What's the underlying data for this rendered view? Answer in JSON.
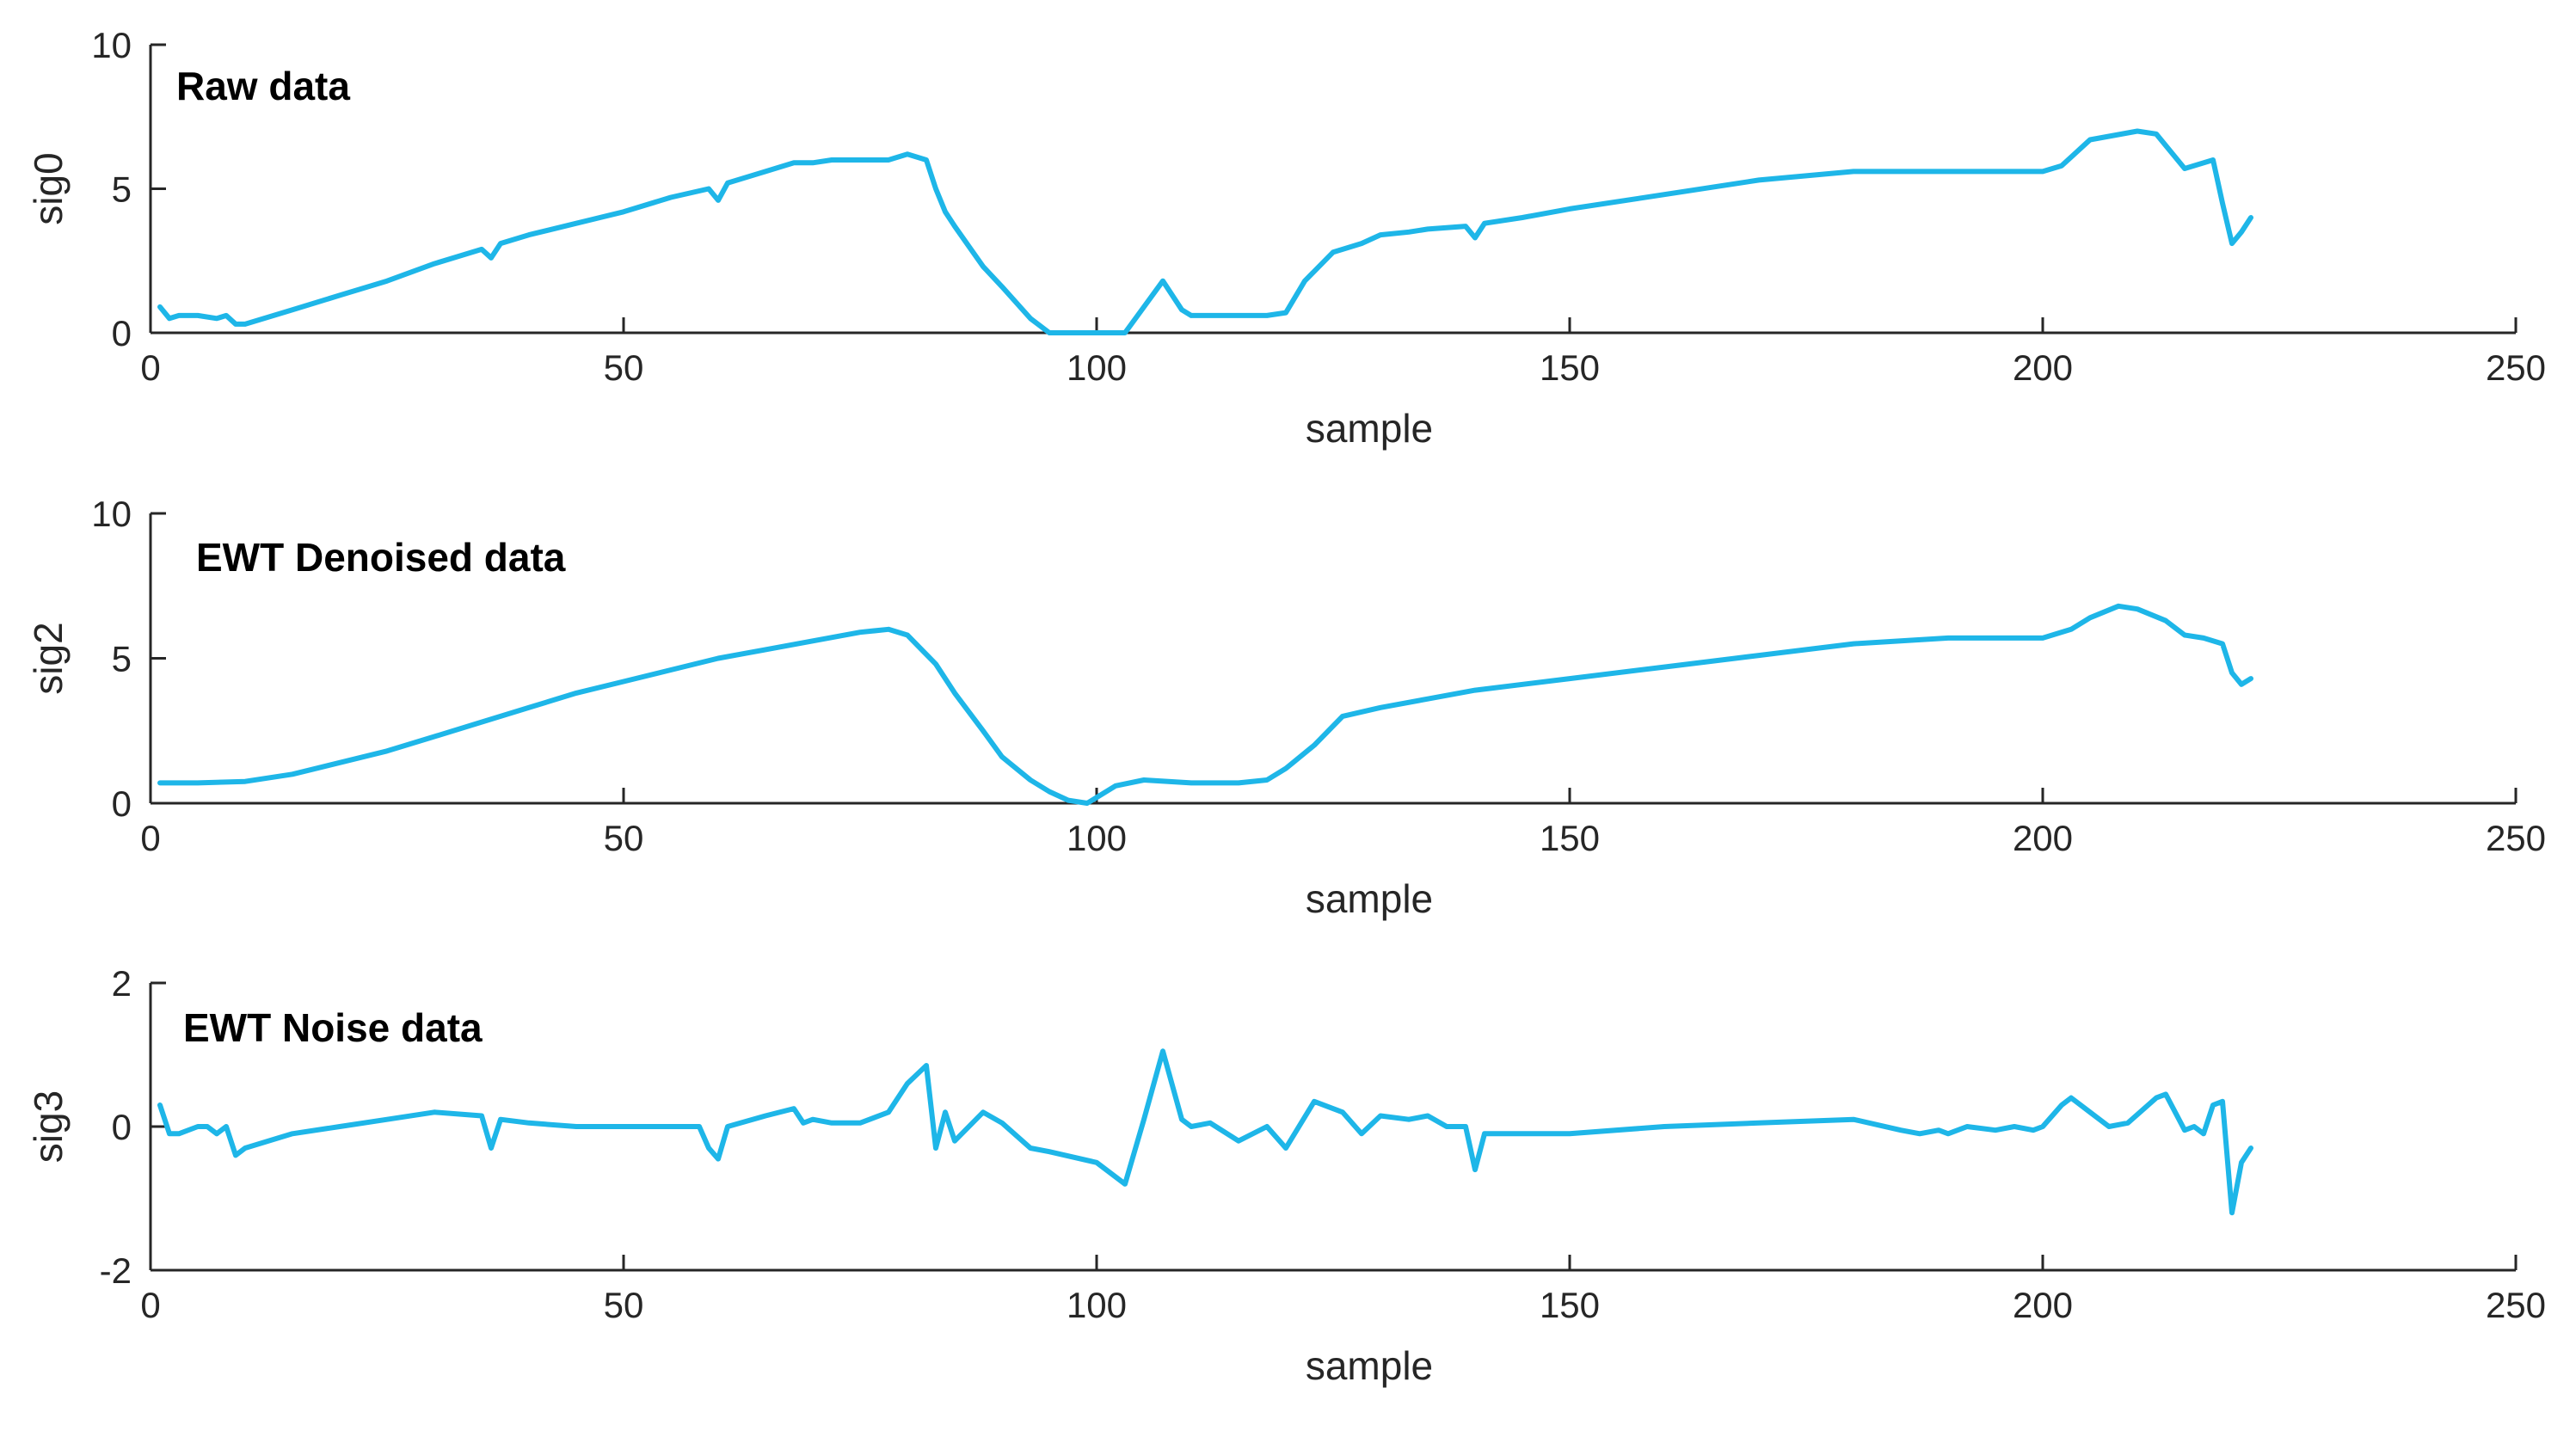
{
  "chart_data": [
    {
      "type": "line",
      "title": "Raw data",
      "xlabel": "sample",
      "ylabel": "sig0",
      "xlim": [
        0,
        250
      ],
      "ylim": [
        0,
        10
      ],
      "xticks": [
        0,
        50,
        100,
        150,
        200,
        250
      ],
      "yticks": [
        0,
        5,
        10
      ],
      "series": [
        {
          "name": "sig0",
          "color": "#1EB6E8",
          "x": [
            1,
            2,
            3,
            5,
            7,
            8,
            9,
            10,
            15,
            20,
            25,
            30,
            35,
            36,
            37,
            40,
            45,
            50,
            55,
            59,
            60,
            61,
            65,
            68,
            70,
            72,
            75,
            78,
            80,
            82,
            83,
            84,
            85,
            88,
            90,
            93,
            95,
            100,
            103,
            105,
            107,
            109,
            110,
            115,
            118,
            120,
            122,
            125,
            128,
            130,
            133,
            135,
            139,
            140,
            141,
            145,
            150,
            160,
            170,
            180,
            185,
            190,
            195,
            200,
            202,
            205,
            210,
            212,
            215,
            218,
            219,
            220,
            221,
            222
          ],
          "y": [
            0.9,
            0.5,
            0.6,
            0.6,
            0.5,
            0.6,
            0.3,
            0.3,
            0.8,
            1.3,
            1.8,
            2.4,
            2.9,
            2.6,
            3.1,
            3.4,
            3.8,
            4.2,
            4.7,
            5.0,
            4.6,
            5.2,
            5.6,
            5.9,
            5.9,
            6.0,
            6.0,
            6.0,
            6.2,
            6.0,
            5.0,
            4.2,
            3.7,
            2.3,
            1.6,
            0.5,
            0.0,
            0.0,
            0.0,
            0.9,
            1.8,
            0.8,
            0.6,
            0.6,
            0.6,
            0.7,
            1.8,
            2.8,
            3.1,
            3.4,
            3.5,
            3.6,
            3.7,
            3.3,
            3.8,
            4.0,
            4.3,
            4.8,
            5.3,
            5.6,
            5.6,
            5.6,
            5.6,
            5.6,
            5.8,
            6.7,
            7.0,
            6.9,
            5.7,
            6.0,
            4.5,
            3.1,
            3.5,
            4.0
          ]
        }
      ]
    },
    {
      "type": "line",
      "title": "EWT Denoised data",
      "xlabel": "sample",
      "ylabel": "sig2",
      "xlim": [
        0,
        250
      ],
      "ylim": [
        0,
        10
      ],
      "xticks": [
        0,
        50,
        100,
        150,
        200,
        250
      ],
      "yticks": [
        0,
        5,
        10
      ],
      "series": [
        {
          "name": "sig2",
          "color": "#1EB6E8",
          "x": [
            1,
            5,
            10,
            15,
            20,
            25,
            30,
            35,
            40,
            45,
            50,
            55,
            60,
            65,
            70,
            75,
            78,
            80,
            83,
            85,
            88,
            90,
            93,
            95,
            97,
            99,
            100,
            102,
            105,
            110,
            115,
            118,
            120,
            123,
            126,
            130,
            135,
            140,
            150,
            160,
            170,
            180,
            190,
            195,
            200,
            203,
            205,
            208,
            210,
            213,
            215,
            217,
            219,
            220,
            221,
            222
          ],
          "y": [
            0.7,
            0.7,
            0.75,
            1.0,
            1.4,
            1.8,
            2.3,
            2.8,
            3.3,
            3.8,
            4.2,
            4.6,
            5.0,
            5.3,
            5.6,
            5.9,
            6.0,
            5.8,
            4.8,
            3.8,
            2.5,
            1.6,
            0.8,
            0.4,
            0.1,
            0.0,
            0.2,
            0.6,
            0.8,
            0.7,
            0.7,
            0.8,
            1.2,
            2.0,
            3.0,
            3.3,
            3.6,
            3.9,
            4.3,
            4.7,
            5.1,
            5.5,
            5.7,
            5.7,
            5.7,
            6.0,
            6.4,
            6.8,
            6.7,
            6.3,
            5.8,
            5.7,
            5.5,
            4.5,
            4.1,
            4.3
          ]
        }
      ]
    },
    {
      "type": "line",
      "title": "EWT Noise data",
      "xlabel": "sample",
      "ylabel": "sig3",
      "xlim": [
        0,
        250
      ],
      "ylim": [
        -2,
        2
      ],
      "xticks": [
        0,
        50,
        100,
        150,
        200,
        250
      ],
      "yticks": [
        -2,
        0,
        2
      ],
      "series": [
        {
          "name": "sig3",
          "color": "#1EB6E8",
          "x": [
            1,
            2,
            3,
            5,
            6,
            7,
            8,
            9,
            10,
            15,
            20,
            25,
            30,
            35,
            36,
            37,
            40,
            45,
            50,
            55,
            58,
            59,
            60,
            61,
            65,
            68,
            69,
            70,
            72,
            75,
            78,
            80,
            82,
            83,
            84,
            85,
            88,
            90,
            93,
            95,
            100,
            103,
            105,
            107,
            109,
            110,
            112,
            115,
            118,
            120,
            123,
            126,
            128,
            130,
            133,
            135,
            137,
            139,
            140,
            141,
            145,
            150,
            160,
            170,
            180,
            185,
            187,
            189,
            190,
            192,
            195,
            197,
            199,
            200,
            202,
            203,
            205,
            207,
            209,
            212,
            213,
            215,
            216,
            217,
            218,
            219,
            220,
            221,
            222
          ],
          "y": [
            0.3,
            -0.1,
            -0.1,
            0.0,
            0.0,
            -0.1,
            0.0,
            -0.4,
            -0.3,
            -0.1,
            0.0,
            0.1,
            0.2,
            0.15,
            -0.3,
            0.1,
            0.05,
            0.0,
            0.0,
            0.0,
            0.0,
            -0.3,
            -0.45,
            0.0,
            0.15,
            0.25,
            0.05,
            0.1,
            0.05,
            0.05,
            0.2,
            0.6,
            0.85,
            -0.3,
            0.2,
            -0.2,
            0.2,
            0.05,
            -0.3,
            -0.35,
            -0.5,
            -0.8,
            0.1,
            1.05,
            0.1,
            0.0,
            0.05,
            -0.2,
            0.0,
            -0.3,
            0.35,
            0.2,
            -0.1,
            0.15,
            0.1,
            0.15,
            0.0,
            0.0,
            -0.6,
            -0.1,
            -0.1,
            -0.1,
            0.0,
            0.05,
            0.1,
            -0.05,
            -0.1,
            -0.05,
            -0.1,
            0.0,
            -0.05,
            0.0,
            -0.05,
            0.0,
            0.3,
            0.4,
            0.2,
            0.0,
            0.05,
            0.4,
            0.45,
            -0.05,
            0.0,
            -0.1,
            0.3,
            0.35,
            -1.2,
            -0.5,
            -0.3
          ]
        }
      ]
    }
  ]
}
